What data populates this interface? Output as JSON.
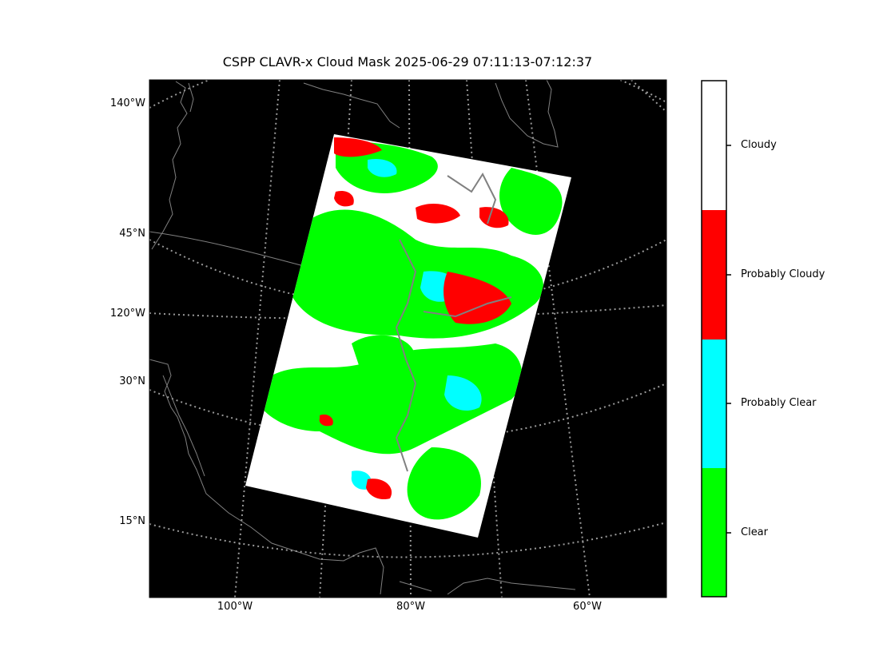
{
  "title": "CSPP CLAVR-x Cloud Mask 2025-06-29 07:11:13-07:12:37",
  "map": {
    "lat_labels": [
      "140°W",
      "45°N",
      "120°W",
      "30°N",
      "15°N"
    ],
    "lon_labels": [
      "100°W",
      "80°W",
      "60°W"
    ],
    "background_color": "#000000",
    "coastline_color": "#808080",
    "graticule_color": "#9a9a9a"
  },
  "legend": {
    "classes": [
      {
        "label": "Cloudy",
        "color": "#ffffff"
      },
      {
        "label": "Probably Cloudy",
        "color": "#ff0000"
      },
      {
        "label": "Probably Clear",
        "color": "#00ffff"
      },
      {
        "label": "Clear",
        "color": "#00ff00"
      }
    ]
  }
}
